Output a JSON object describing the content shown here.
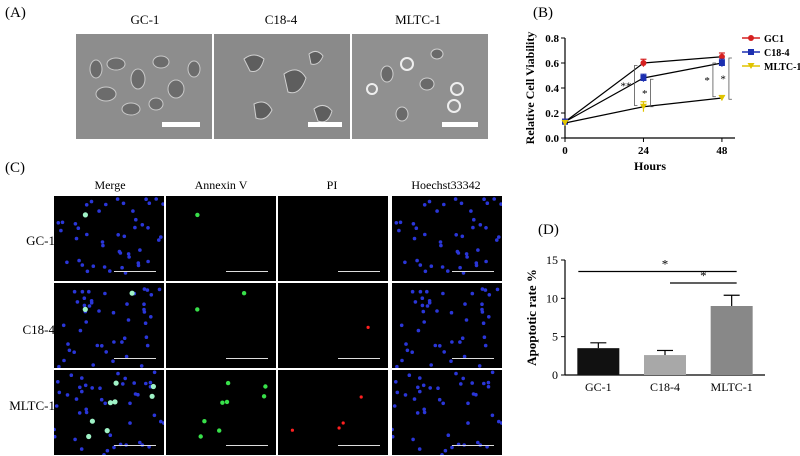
{
  "panel_a": {
    "letter": "(A)",
    "images": [
      {
        "label": "GC-1"
      },
      {
        "label": "C18-4"
      },
      {
        "label": "MLTC-1"
      }
    ]
  },
  "panel_b": {
    "letter": "(B)",
    "ylabel": "Relative Cell Viability",
    "xlabel": "Hours",
    "significance": [
      "**",
      "*",
      "*",
      "*"
    ]
  },
  "panel_c": {
    "letter": "(C)",
    "columns": [
      "Merge",
      "Annexin V",
      "PI",
      "Hoechst33342"
    ],
    "rows": [
      "GC-1",
      "C18-4",
      "MLTC-1"
    ]
  },
  "panel_d": {
    "letter": "(D)",
    "ylabel": "Apoptotic rate %",
    "significance": [
      "*",
      "*"
    ]
  },
  "colors": {
    "gc1": "#d62020",
    "c184": "#1c2fb0",
    "mltc1": "#e0c400",
    "bar_gc1": "#111111",
    "bar_c184": "#a8a8a8",
    "bar_mltc1": "#888888"
  },
  "chart_data": [
    {
      "type": "line",
      "x": [
        0,
        24,
        48
      ],
      "xticks": [
        "0",
        "24",
        "48"
      ],
      "yticks": [
        "0.0",
        "0.2",
        "0.4",
        "0.6",
        "0.8"
      ],
      "xlim": [
        0,
        52
      ],
      "ylim": [
        0,
        0.8
      ],
      "xlabel": "Hours",
      "ylabel": "Relative Cell Viability",
      "legend_position": "top-right",
      "series": [
        {
          "name": "GC1",
          "values": [
            0.13,
            0.6,
            0.65
          ],
          "errors": [
            0.02,
            0.03,
            0.03
          ]
        },
        {
          "name": "C18-4",
          "values": [
            0.13,
            0.48,
            0.6
          ],
          "errors": [
            0.02,
            0.03,
            0.03
          ]
        },
        {
          "name": "MLTC-1",
          "values": [
            0.12,
            0.25,
            0.32
          ],
          "errors": [
            0.02,
            0.04,
            0.02
          ]
        }
      ]
    },
    {
      "type": "bar",
      "categories": [
        "GC-1",
        "C18-4",
        "MLTC-1"
      ],
      "values": [
        3.5,
        2.6,
        9.0
      ],
      "errors": [
        0.7,
        0.6,
        1.4
      ],
      "yticks": [
        "0",
        "5",
        "10",
        "15"
      ],
      "ylim": [
        0,
        15
      ],
      "ylabel": "Apoptotic rate %"
    }
  ]
}
